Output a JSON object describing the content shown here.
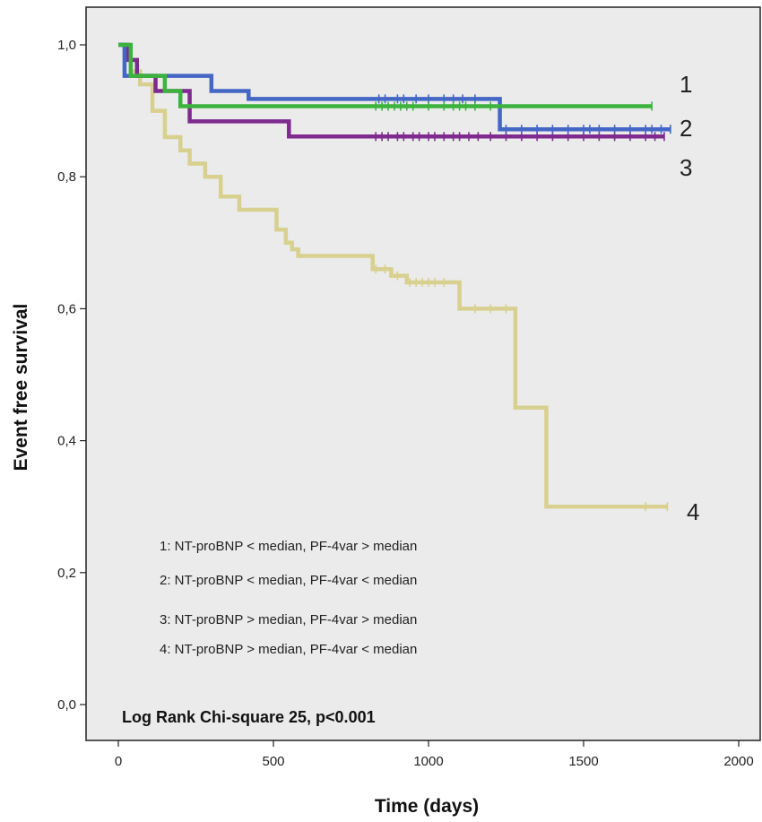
{
  "chart_data": {
    "type": "line",
    "title": "",
    "xlabel": "Time (days)",
    "ylabel": "Event free survival",
    "xlim": [
      -100,
      2000
    ],
    "ylim": [
      -0.02,
      1.05
    ],
    "xticks": [
      0,
      500,
      1000,
      1500,
      2000
    ],
    "xtick_labels": [
      "0",
      "500",
      "1000",
      "1500",
      "2000"
    ],
    "yticks": [
      0.0,
      0.2,
      0.4,
      0.6,
      0.8,
      1.0
    ],
    "ytick_labels": [
      "0,0",
      "0,2",
      "0,4",
      "0,6",
      "0,8",
      "1,0"
    ],
    "grid": false,
    "background": "#ebebeb",
    "step": true,
    "legend_items": [
      "1: NT-proBNP < median, PF-4var > median",
      "2: NT-proBNP < median, PF-4var < median",
      "3: NT-proBNP > median, PF-4var > median",
      "4: NT-proBNP > median, PF-4var < median"
    ],
    "annotation": "Log Rank Chi-square 25, p<0.001",
    "series": [
      {
        "label": "1",
        "color": "#3cb33c",
        "x": [
          0,
          40,
          150,
          200,
          1720
        ],
        "y": [
          1.0,
          0.953,
          0.93,
          0.907,
          0.907
        ],
        "censored_x": [
          830,
          850,
          870,
          890,
          910,
          930,
          950,
          1000,
          1050,
          1080,
          1100,
          1120,
          1150,
          1200,
          1720
        ]
      },
      {
        "label": "2",
        "color": "#4466c4",
        "x": [
          0,
          20,
          80,
          300,
          420,
          1230,
          1780
        ],
        "y": [
          1.0,
          0.953,
          0.953,
          0.93,
          0.918,
          0.872,
          0.872
        ],
        "censored_x": [
          840,
          860,
          900,
          920,
          960,
          1000,
          1050,
          1080,
          1110,
          1150,
          1250,
          1300,
          1350,
          1400,
          1450,
          1500,
          1520,
          1550,
          1600,
          1650,
          1700,
          1720,
          1750,
          1780
        ]
      },
      {
        "label": "3",
        "color": "#7e2a8e",
        "x": [
          0,
          30,
          60,
          120,
          230,
          550,
          1760
        ],
        "y": [
          1.0,
          0.977,
          0.953,
          0.93,
          0.884,
          0.861,
          0.861
        ],
        "censored_x": [
          830,
          850,
          870,
          900,
          920,
          950,
          970,
          1000,
          1020,
          1050,
          1080,
          1100,
          1130,
          1160,
          1200,
          1250,
          1300,
          1350,
          1400,
          1450,
          1500,
          1550,
          1600,
          1650,
          1700,
          1730,
          1760
        ]
      },
      {
        "label": "4",
        "color": "#d8d08e",
        "x": [
          0,
          20,
          40,
          70,
          110,
          150,
          200,
          230,
          280,
          330,
          390,
          510,
          540,
          560,
          580,
          630,
          820,
          880,
          930,
          1020,
          1100,
          1280,
          1380,
          1770
        ],
        "y": [
          1.0,
          0.98,
          0.96,
          0.94,
          0.9,
          0.86,
          0.84,
          0.82,
          0.8,
          0.77,
          0.75,
          0.72,
          0.7,
          0.69,
          0.68,
          0.68,
          0.66,
          0.65,
          0.64,
          0.64,
          0.6,
          0.45,
          0.3,
          0.3
        ],
        "censored_x": [
          830,
          860,
          900,
          940,
          960,
          980,
          1000,
          1020,
          1050,
          1150,
          1200,
          1250,
          1700,
          1770
        ]
      }
    ]
  }
}
